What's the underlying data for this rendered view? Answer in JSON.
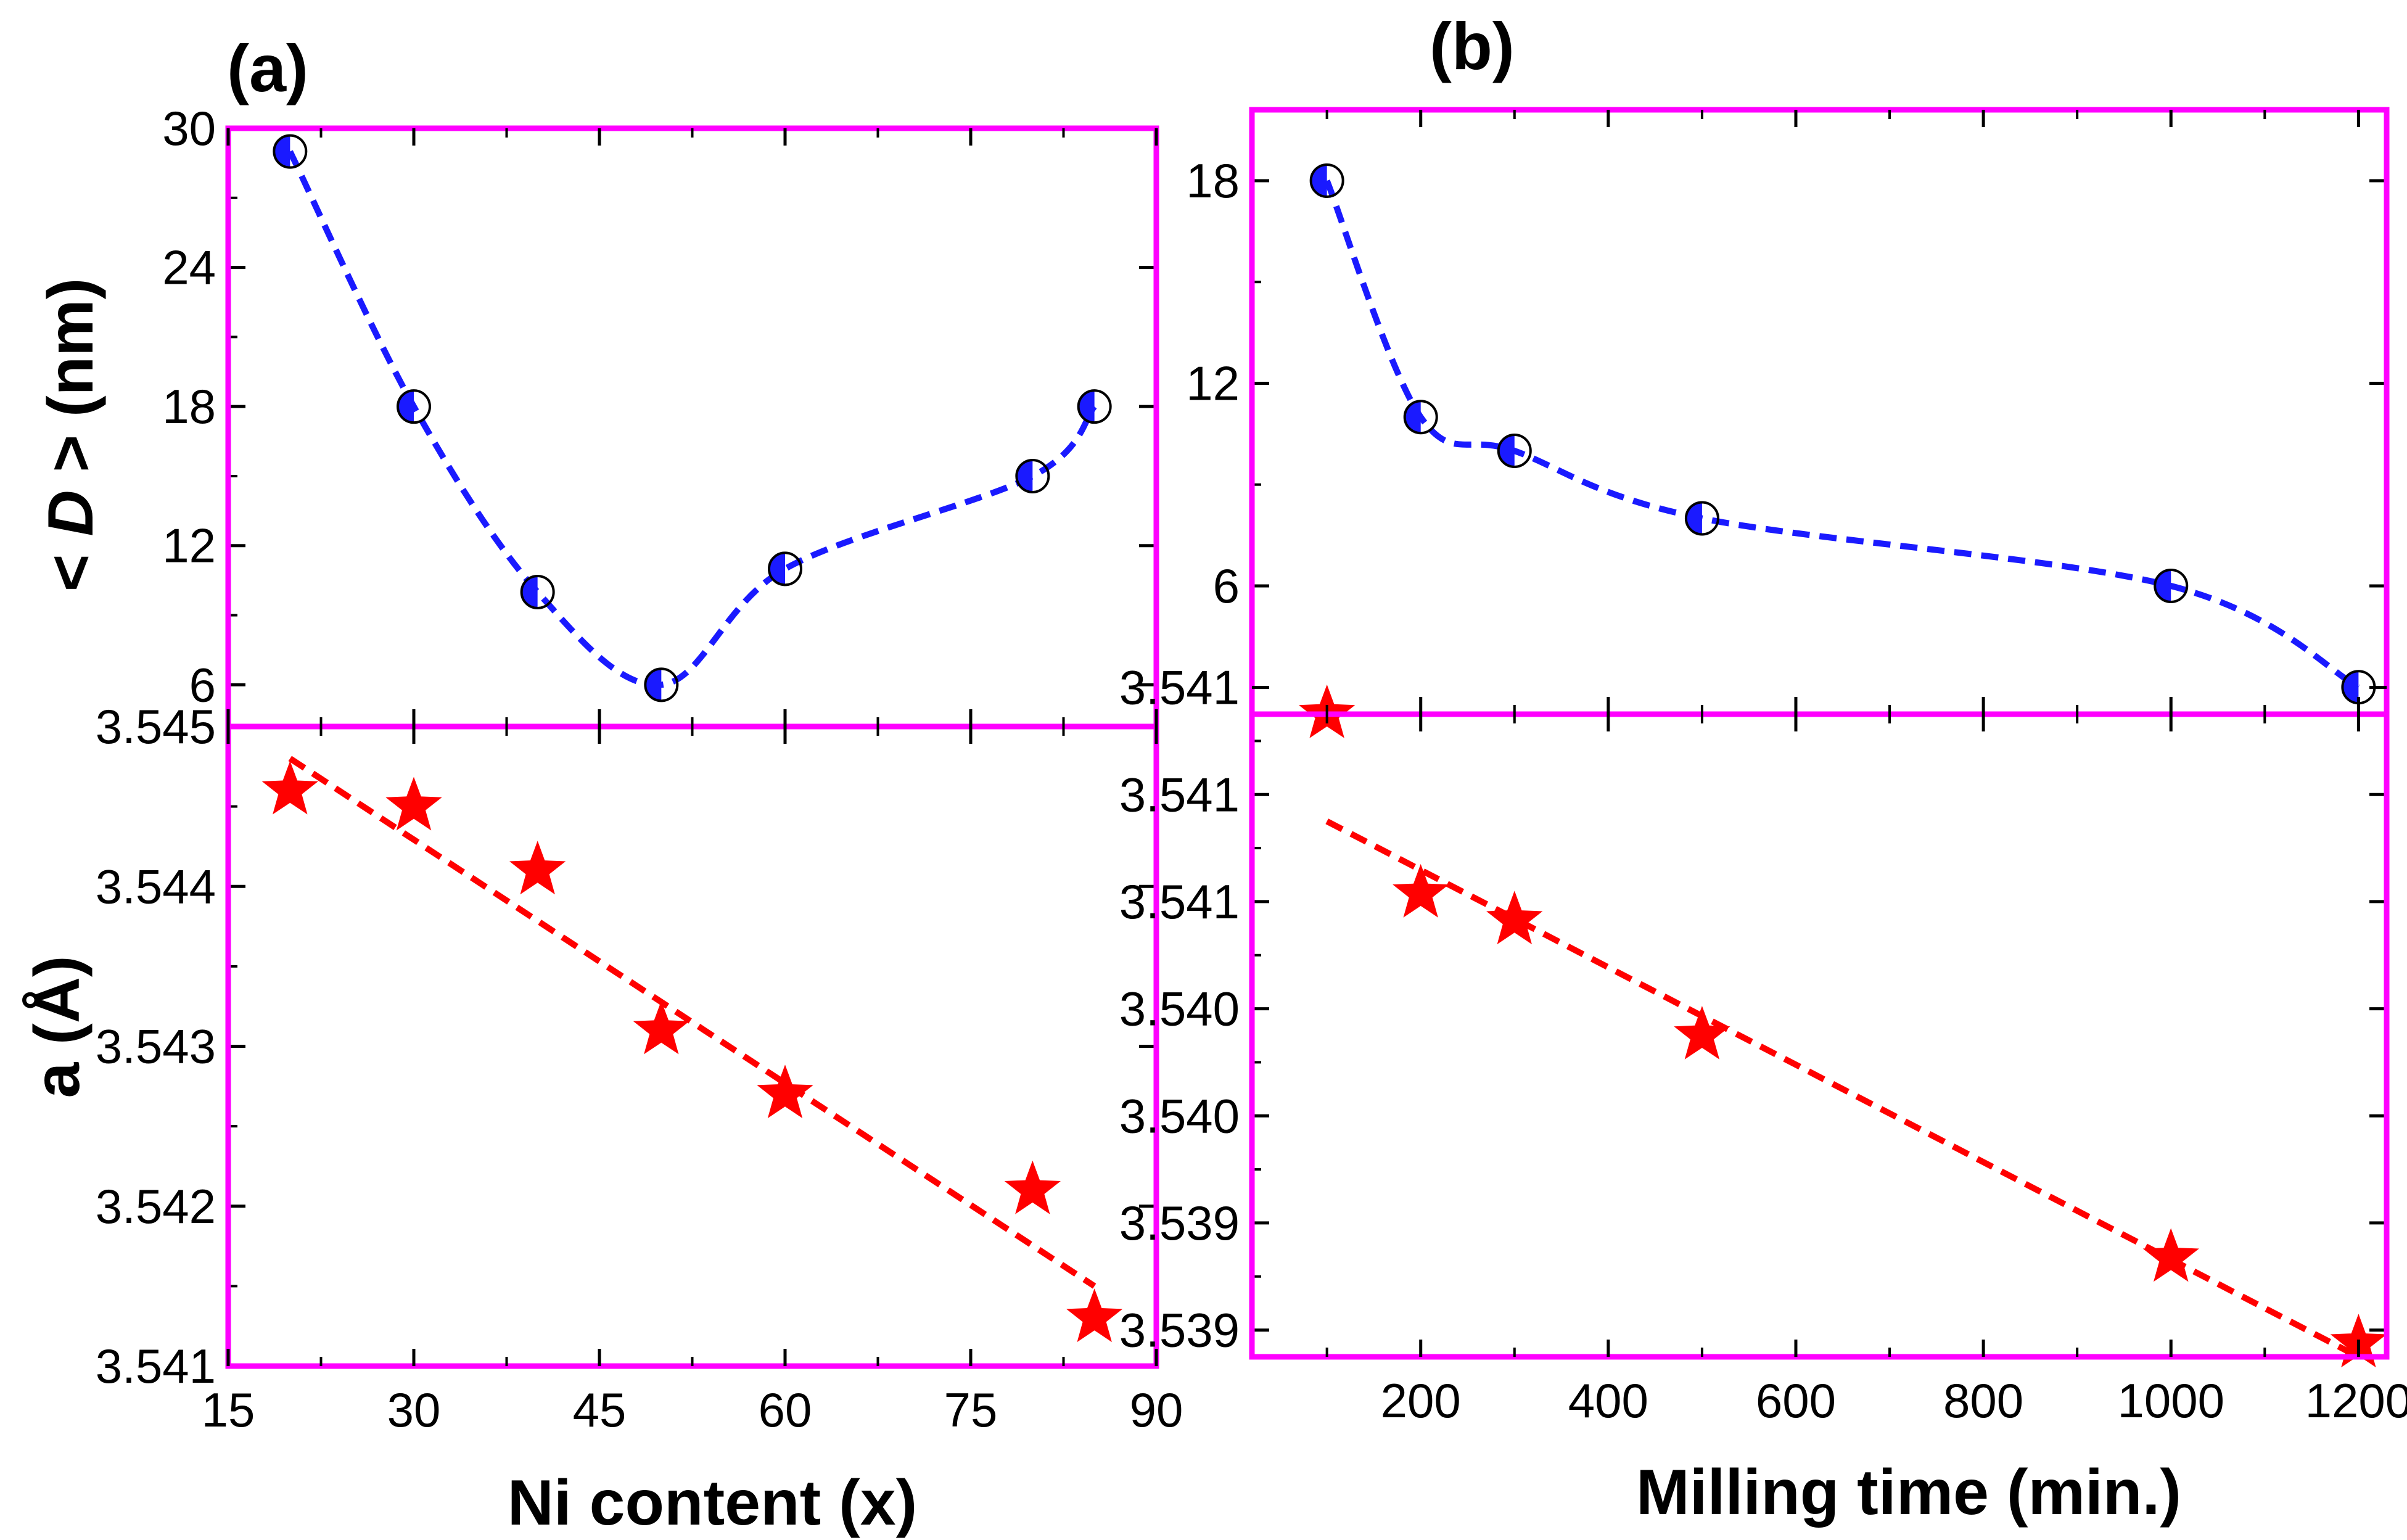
{
  "colors": {
    "frame": "#ff00ff",
    "circle_series": "#1a1aff",
    "star_series": "#ff0000",
    "text": "#000000"
  },
  "chart_data": [
    {
      "panel_label": "(a)",
      "xlabel": "Ni content (x)",
      "xlim": [
        15,
        90
      ],
      "xticks": [
        "15",
        "30",
        "45",
        "60",
        "75",
        "90"
      ],
      "subplots": [
        {
          "type": "scatter",
          "ylabel_prefix": "< ",
          "ylabel_italic": "D",
          "ylabel_suffix": " > (nm)",
          "ylim": [
            4.2,
            30
          ],
          "yticks": [
            6,
            12,
            18,
            24,
            30
          ],
          "ytick_labels": [
            "6",
            "12",
            "18",
            "24",
            "30"
          ],
          "marker": "half-filled circle",
          "x": [
            20,
            30,
            40,
            50,
            60,
            80,
            85
          ],
          "y": [
            29,
            18,
            10,
            6,
            11,
            15,
            18
          ],
          "fit": "dashed smooth curve"
        },
        {
          "type": "scatter",
          "ylabel": "a (Å)",
          "ylim": [
            3.541,
            3.545
          ],
          "yticks": [
            3.541,
            3.542,
            3.543,
            3.544,
            3.545
          ],
          "ytick_labels": [
            "3.541",
            "3.542",
            "3.543",
            "3.544",
            "3.545"
          ],
          "marker": "star",
          "x": [
            20,
            30,
            40,
            50,
            60,
            80,
            85
          ],
          "y": [
            3.5446,
            3.5445,
            3.5441,
            3.5431,
            3.5427,
            3.5421,
            3.5413
          ],
          "fit": "dashed linear",
          "fit_endpoints": [
            [
              20,
              3.5448
            ],
            [
              85,
              3.5415
            ]
          ]
        }
      ]
    },
    {
      "panel_label": "(b)",
      "xlabel": "Milling time (min.)",
      "xlim": [
        20,
        1230
      ],
      "xticks": [
        "200",
        "400",
        "600",
        "800",
        "1000",
        "1200"
      ],
      "subplots": [
        {
          "type": "scatter",
          "ylim": [
            2.2,
            20.1
          ],
          "yticks": [
            6,
            12,
            18
          ],
          "ytick_labels": [
            "6",
            "12",
            "18"
          ],
          "marker": "half-filled circle",
          "x": [
            100,
            200,
            300,
            500,
            1000,
            1200
          ],
          "y": [
            18,
            11,
            10,
            8,
            6,
            3
          ],
          "fit": "dashed smooth curve"
        },
        {
          "type": "scatter",
          "ylim": [
            3.5389,
            3.5413
          ],
          "yticks": [
            3.539,
            3.5394,
            3.5398,
            3.5402,
            3.5406,
            3.541,
            3.5414
          ],
          "ytick_labels": [
            "3.539",
            "3.539",
            "3.540",
            "3.540",
            "3.541",
            "3.541",
            "3.541"
          ],
          "marker": "star",
          "x": [
            100,
            200,
            300,
            500,
            1000,
            1200
          ],
          "y": [
            3.5413,
            3.54063,
            3.54053,
            3.5401,
            3.53927,
            3.53895
          ],
          "fit": "dashed linear",
          "fit_endpoints": [
            [
              100,
              3.5409
            ],
            [
              1200,
              3.5389
            ]
          ]
        }
      ]
    }
  ]
}
